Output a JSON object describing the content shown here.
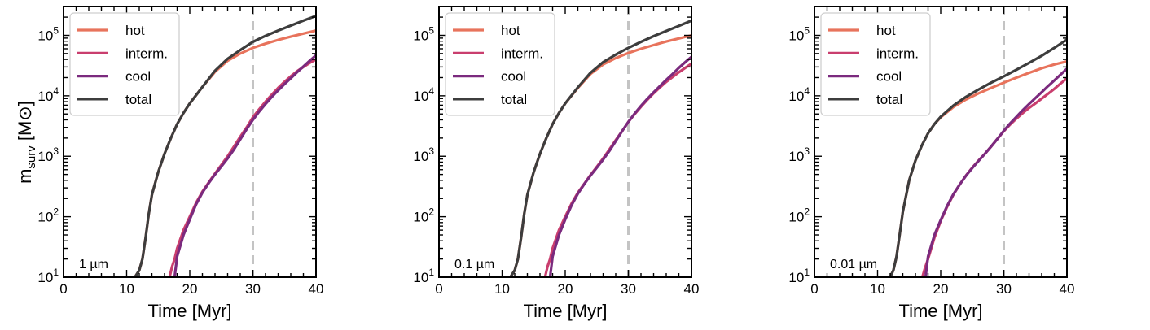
{
  "ylabel_main": "m",
  "ylabel_sub": "surv",
  "ylabel_unit_open": " [M",
  "ylabel_unit_sym": "⊙",
  "ylabel_unit_close": "]",
  "colors": {
    "hot": "#e8735c",
    "interm": "#c93e6e",
    "cool": "#7b2a7e",
    "total": "#3d3d3d",
    "vline": "#c4c4c4"
  },
  "chart_data": [
    {
      "type": "line",
      "annotation": "1 µm",
      "xlabel": "Time [Myr]",
      "ylabel": "m_surv [M_⊙]",
      "xlim": [
        0,
        40
      ],
      "ylim": [
        10,
        300000
      ],
      "yscale": "log",
      "xticks": [
        "0",
        "10",
        "20",
        "30",
        "40"
      ],
      "yticks": [
        "10^1",
        "10^2",
        "10^3",
        "10^4",
        "10^5"
      ],
      "vline_x": 30,
      "legend": [
        "hot",
        "interm.",
        "cool",
        "total"
      ],
      "series": [
        {
          "name": "hot",
          "color_key": "hot",
          "x": [
            11.3,
            12,
            12.5,
            13,
            13.5,
            14,
            15,
            16,
            17,
            18,
            19,
            20,
            22,
            24,
            26,
            28,
            30,
            32,
            34,
            36,
            38,
            40
          ],
          "y": [
            10,
            13,
            20,
            45,
            110,
            230,
            550,
            1100,
            2000,
            3400,
            5200,
            7500,
            14000,
            25000,
            38000,
            50000,
            62000,
            73000,
            84000,
            95000,
            107000,
            120000
          ]
        },
        {
          "name": "interm.",
          "color_key": "interm",
          "x": [
            16.8,
            17.2,
            17.6,
            18,
            19,
            20,
            21,
            22,
            23,
            24,
            25,
            26,
            27,
            28,
            29,
            30,
            31,
            32,
            33,
            34,
            35,
            36,
            37,
            38,
            39,
            40
          ],
          "y": [
            10,
            15,
            20,
            30,
            60,
            100,
            170,
            260,
            370,
            520,
            720,
            1000,
            1450,
            2100,
            3000,
            4400,
            6000,
            8000,
            10500,
            13500,
            17000,
            21000,
            25500,
            30000,
            35000,
            40000
          ]
        },
        {
          "name": "cool",
          "color_key": "cool",
          "x": [
            17.6,
            18,
            19,
            20,
            21,
            22,
            23,
            24,
            25,
            26,
            27,
            28,
            29,
            30,
            31,
            32,
            33,
            34,
            35,
            36,
            37,
            38,
            39,
            40
          ],
          "y": [
            10,
            22,
            50,
            90,
            160,
            250,
            360,
            500,
            680,
            920,
            1300,
            1900,
            2800,
            4000,
            5500,
            7300,
            9600,
            12300,
            15600,
            19500,
            24500,
            30500,
            38000,
            47000
          ]
        },
        {
          "name": "total",
          "color_key": "total",
          "x": [
            11.3,
            12,
            12.5,
            13,
            13.5,
            14,
            15,
            16,
            17,
            18,
            19,
            20,
            22,
            24,
            26,
            28,
            30,
            32,
            34,
            36,
            38,
            40
          ],
          "y": [
            10,
            13,
            20,
            45,
            110,
            230,
            550,
            1100,
            2000,
            3400,
            5200,
            7500,
            14000,
            26000,
            41000,
            57000,
            78000,
            98000,
            120000,
            145000,
            175000,
            210000
          ]
        }
      ]
    },
    {
      "type": "line",
      "annotation": "0.1 µm",
      "xlabel": "Time [Myr]",
      "ylabel": "m_surv [M_⊙]",
      "xlim": [
        0,
        40
      ],
      "ylim": [
        10,
        300000
      ],
      "yscale": "log",
      "xticks": [
        "0",
        "10",
        "20",
        "30",
        "40"
      ],
      "yticks": [
        "10^1",
        "10^2",
        "10^3",
        "10^4",
        "10^5"
      ],
      "vline_x": 30,
      "legend": [
        "hot",
        "interm.",
        "cool",
        "total"
      ],
      "series": [
        {
          "name": "hot",
          "color_key": "hot",
          "x": [
            11.3,
            12,
            12.5,
            13,
            13.5,
            14,
            15,
            16,
            17,
            18,
            19,
            20,
            22,
            24,
            26,
            28,
            30,
            32,
            34,
            36,
            38,
            40
          ],
          "y": [
            10,
            13,
            20,
            45,
            110,
            230,
            550,
            1100,
            2000,
            3400,
            5200,
            7500,
            13500,
            23000,
            33000,
            42000,
            51000,
            60000,
            69000,
            79000,
            89000,
            100000
          ]
        },
        {
          "name": "interm.",
          "color_key": "interm",
          "x": [
            16.8,
            17.2,
            17.6,
            18,
            19,
            20,
            21,
            22,
            23,
            24,
            25,
            26,
            27,
            28,
            29,
            30,
            31,
            32,
            33,
            34,
            35,
            36,
            37,
            38,
            39,
            40
          ],
          "y": [
            10,
            15,
            20,
            30,
            60,
            100,
            165,
            250,
            350,
            490,
            670,
            920,
            1300,
            1850,
            2600,
            3700,
            5000,
            6600,
            8600,
            11000,
            13800,
            17000,
            20500,
            24500,
            29000,
            34000
          ]
        },
        {
          "name": "cool",
          "color_key": "cool",
          "x": [
            17.6,
            18,
            19,
            20,
            21,
            22,
            23,
            24,
            25,
            26,
            27,
            28,
            29,
            30,
            31,
            32,
            33,
            34,
            35,
            36,
            37,
            38,
            39,
            40
          ],
          "y": [
            10,
            22,
            50,
            90,
            155,
            240,
            345,
            480,
            650,
            880,
            1230,
            1780,
            2600,
            3700,
            5100,
            6800,
            8900,
            11400,
            14500,
            18300,
            23000,
            29000,
            36000,
            44000
          ]
        },
        {
          "name": "total",
          "color_key": "total",
          "x": [
            11.3,
            12,
            12.5,
            13,
            13.5,
            14,
            15,
            16,
            17,
            18,
            19,
            20,
            22,
            24,
            26,
            28,
            30,
            32,
            34,
            36,
            38,
            40
          ],
          "y": [
            10,
            13,
            20,
            45,
            110,
            230,
            550,
            1100,
            2000,
            3400,
            5200,
            7500,
            13800,
            24000,
            36000,
            48000,
            62000,
            78000,
            97000,
            118000,
            143000,
            175000
          ]
        }
      ]
    },
    {
      "type": "line",
      "annotation": "0.01 µm",
      "xlabel": "Time [Myr]",
      "ylabel": "m_surv [M_⊙]",
      "xlim": [
        0,
        40
      ],
      "ylim": [
        10,
        300000
      ],
      "yscale": "log",
      "xticks": [
        "0",
        "10",
        "20",
        "30",
        "40"
      ],
      "yticks": [
        "10^1",
        "10^2",
        "10^3",
        "10^4",
        "10^5"
      ],
      "vline_x": 30,
      "legend": [
        "hot",
        "interm.",
        "cool",
        "total"
      ],
      "series": [
        {
          "name": "hot",
          "color_key": "hot",
          "x": [
            12,
            12.5,
            13,
            13.5,
            14,
            15,
            16,
            17,
            18,
            19,
            20,
            22,
            24,
            26,
            28,
            30,
            32,
            34,
            36,
            38,
            40
          ],
          "y": [
            10,
            13,
            22,
            50,
            120,
            400,
            850,
            1500,
            2400,
            3400,
            4400,
            6500,
            8700,
            11000,
            13500,
            16500,
            20000,
            24000,
            28500,
            33000,
            37000
          ]
        },
        {
          "name": "interm.",
          "color_key": "interm",
          "x": [
            17.1,
            17.5,
            18,
            19,
            20,
            21,
            22,
            23,
            24,
            25,
            26,
            27,
            28,
            29,
            30,
            31,
            32,
            33,
            34,
            35,
            36,
            37,
            38,
            39,
            40
          ],
          "y": [
            10,
            14,
            20,
            45,
            85,
            145,
            230,
            340,
            480,
            650,
            850,
            1100,
            1450,
            1950,
            2600,
            3350,
            4200,
            5200,
            6300,
            7500,
            9000,
            10800,
            13000,
            16000,
            19500
          ]
        },
        {
          "name": "cool",
          "color_key": "cool",
          "x": [
            17.6,
            18,
            19,
            20,
            21,
            22,
            23,
            24,
            25,
            26,
            27,
            28,
            29,
            30,
            31,
            32,
            33,
            34,
            35,
            36,
            37,
            38,
            39,
            40
          ],
          "y": [
            10,
            22,
            50,
            88,
            150,
            235,
            340,
            475,
            640,
            840,
            1100,
            1450,
            1950,
            2650,
            3500,
            4500,
            5800,
            7300,
            9200,
            11500,
            14500,
            18000,
            22500,
            28000
          ]
        },
        {
          "name": "total",
          "color_key": "total",
          "x": [
            12,
            12.5,
            13,
            13.5,
            14,
            15,
            16,
            17,
            18,
            19,
            20,
            22,
            24,
            26,
            28,
            30,
            32,
            34,
            36,
            38,
            40
          ],
          "y": [
            10,
            13,
            22,
            50,
            120,
            400,
            850,
            1500,
            2400,
            3400,
            4500,
            6900,
            9600,
            12700,
            16500,
            21000,
            27000,
            35000,
            46000,
            62000,
            85000
          ]
        }
      ]
    }
  ]
}
